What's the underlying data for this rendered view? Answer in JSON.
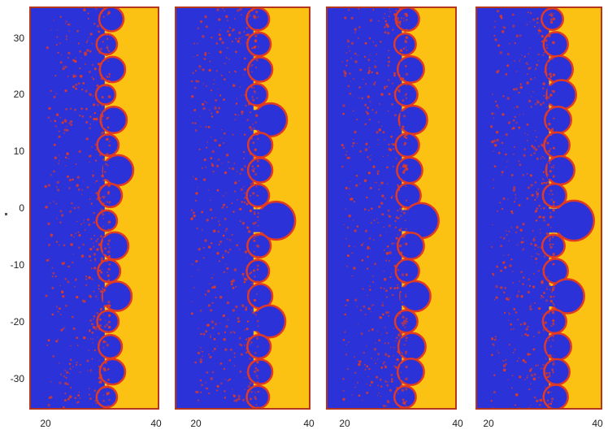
{
  "figure": {
    "panel_count": 4,
    "colors": {
      "bulk": "#2a32d8",
      "interface": "#e03a24",
      "background": "#fcc213",
      "frame": "#b5351f"
    },
    "y_ticks": [
      "30",
      "20",
      "10",
      "0",
      "-10",
      "-20",
      "-30"
    ],
    "x_ticks": [
      "20",
      "40"
    ],
    "panels": [
      {
        "id": "panel-1",
        "finger_amplitudes": [
          1.0,
          0.6,
          1.1,
          0.5,
          1.2,
          0.7,
          1.6,
          0.9,
          0.6,
          1.3,
          0.8,
          1.5,
          0.7,
          0.9,
          1.1,
          0.6
        ]
      },
      {
        "id": "panel-2",
        "finger_amplitudes": [
          0.8,
          0.9,
          1.0,
          0.7,
          1.9,
          1.0,
          1.0,
          0.8,
          2.4,
          0.9,
          0.8,
          1.0,
          1.8,
          0.9,
          1.0,
          0.8
        ]
      },
      {
        "id": "panel-3",
        "finger_amplitudes": [
          0.9,
          0.7,
          1.2,
          0.8,
          1.4,
          0.9,
          1.1,
          1.0,
          2.1,
          1.2,
          0.9,
          1.6,
          0.8,
          1.3,
          1.2,
          0.7
        ]
      },
      {
        "id": "panel-4",
        "finger_amplitudes": [
          0.7,
          1.0,
          1.3,
          1.5,
          1.2,
          1.1,
          1.4,
          0.9,
          2.6,
          0.8,
          1.0,
          2.0,
          0.9,
          1.2,
          1.1,
          1.0
        ]
      }
    ]
  }
}
